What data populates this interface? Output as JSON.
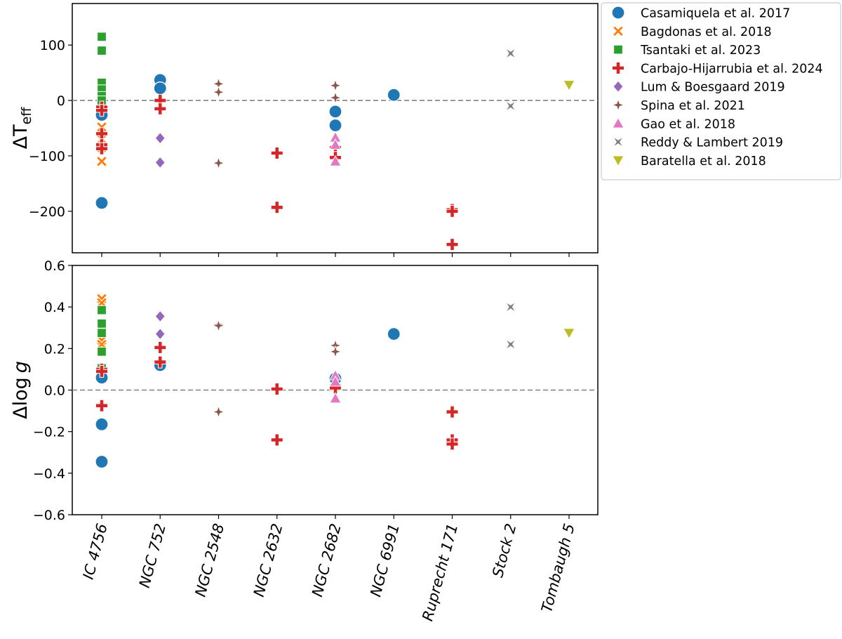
{
  "chart_data": {
    "type": "scatter",
    "categories": [
      "IC 4756",
      "NGC 752",
      "NGC 2548",
      "NGC 2632",
      "NGC 2682",
      "NGC 6991",
      "Ruprecht 171",
      "Stock 2",
      "Tombaugh 5"
    ],
    "legend": [
      {
        "name": "Casamiquela et al. 2017",
        "marker": "circle",
        "color": "#1f77b4"
      },
      {
        "name": "Bagdonas et al. 2018",
        "marker": "x",
        "color": "#ff7f0e"
      },
      {
        "name": "Tsantaki et al. 2023",
        "marker": "square",
        "color": "#2ca02c"
      },
      {
        "name": "Carbajo-Hijarrubia et al. 2024",
        "marker": "plus",
        "color": "#d62728"
      },
      {
        "name": "Lum & Boesgaard 2019",
        "marker": "diamond",
        "color": "#9467bd"
      },
      {
        "name": "Spina et al. 2021",
        "marker": "star4",
        "color": "#8c564b"
      },
      {
        "name": "Gao et al. 2018",
        "marker": "triangle-up",
        "color": "#e377c2"
      },
      {
        "name": "Reddy & Lambert 2019",
        "marker": "star4x",
        "color": "#7f7f7f"
      },
      {
        "name": "Baratella et al. 2018",
        "marker": "triangle-down",
        "color": "#bcbd22"
      }
    ],
    "panels": [
      {
        "id": "teff",
        "ylabel_main": "ΔT",
        "ylabel_sub": "eff",
        "ylim": [
          -275,
          175
        ],
        "yticks": [
          -200,
          -100,
          0,
          100
        ],
        "ytick_labels": [
          "−200",
          "−100",
          "0",
          "100"
        ],
        "zero_line": true,
        "series": [
          {
            "name": "Casamiquela et al. 2017",
            "points": [
              [
                0,
                -15
              ],
              [
                0,
                -22
              ],
              [
                0,
                -26
              ],
              [
                0,
                -185
              ],
              [
                1,
                37
              ],
              [
                1,
                22
              ],
              [
                4,
                -20
              ],
              [
                4,
                -45
              ],
              [
                5,
                10
              ]
            ]
          },
          {
            "name": "Bagdonas et al. 2018",
            "points": [
              [
                0,
                -48
              ],
              [
                0,
                -70
              ],
              [
                0,
                -85
              ],
              [
                0,
                -110
              ]
            ]
          },
          {
            "name": "Tsantaki et al. 2023",
            "points": [
              [
                0,
                115
              ],
              [
                0,
                90
              ],
              [
                0,
                32
              ],
              [
                0,
                20
              ],
              [
                0,
                8
              ],
              [
                0,
                0
              ]
            ]
          },
          {
            "name": "Carbajo-Hijarrubia et al. 2024",
            "points": [
              [
                0,
                -12
              ],
              [
                0,
                -18
              ],
              [
                0,
                -60
              ],
              [
                0,
                -80
              ],
              [
                0,
                -87
              ],
              [
                1,
                0
              ],
              [
                1,
                -15
              ],
              [
                3,
                -95
              ],
              [
                3,
                -193
              ],
              [
                4,
                -85
              ],
              [
                4,
                -103
              ],
              [
                6,
                -197
              ],
              [
                6,
                -200
              ],
              [
                6,
                -260
              ]
            ]
          },
          {
            "name": "Lum & Boesgaard 2019",
            "points": [
              [
                1,
                -68
              ],
              [
                1,
                -112
              ]
            ]
          },
          {
            "name": "Spina et al. 2021",
            "points": [
              [
                2,
                30
              ],
              [
                2,
                15
              ],
              [
                2,
                -113
              ],
              [
                4,
                27
              ],
              [
                4,
                5
              ]
            ]
          },
          {
            "name": "Gao et al. 2018",
            "points": [
              [
                4,
                -67
              ],
              [
                4,
                -80
              ],
              [
                4,
                -110
              ]
            ]
          },
          {
            "name": "Reddy & Lambert 2019",
            "points": [
              [
                7,
                85
              ],
              [
                7,
                -10
              ]
            ]
          },
          {
            "name": "Baratella et al. 2018",
            "points": [
              [
                8,
                28
              ]
            ]
          }
        ]
      },
      {
        "id": "logg",
        "ylabel_main": "Δlog",
        "ylabel_italic": "g",
        "ylim": [
          -0.6,
          0.6
        ],
        "yticks": [
          -0.6,
          -0.4,
          -0.2,
          0.0,
          0.2,
          0.4,
          0.6
        ],
        "ytick_labels": [
          "−0.6",
          "−0.4",
          "−0.2",
          "0.0",
          "0.2",
          "0.4",
          "0.6"
        ],
        "zero_line": true,
        "series": [
          {
            "name": "Casamiquela et al. 2017",
            "points": [
              [
                0,
                0.06
              ],
              [
                0,
                -0.165
              ],
              [
                0,
                -0.345
              ],
              [
                1,
                0.12
              ],
              [
                4,
                0.055
              ],
              [
                5,
                0.27
              ]
            ]
          },
          {
            "name": "Bagdonas et al. 2018",
            "points": [
              [
                0,
                0.44
              ],
              [
                0,
                0.42
              ],
              [
                0,
                0.24
              ],
              [
                0,
                0.22
              ]
            ]
          },
          {
            "name": "Tsantaki et al. 2023",
            "points": [
              [
                0,
                0.385
              ],
              [
                0,
                0.32
              ],
              [
                0,
                0.275
              ],
              [
                0,
                0.185
              ],
              [
                0,
                0.105
              ]
            ]
          },
          {
            "name": "Carbajo-Hijarrubia et al. 2024",
            "points": [
              [
                0,
                0.1
              ],
              [
                0,
                0.09
              ],
              [
                0,
                -0.075
              ],
              [
                1,
                0.205
              ],
              [
                1,
                0.135
              ],
              [
                3,
                0.005
              ],
              [
                3,
                -0.24
              ],
              [
                4,
                0.02
              ],
              [
                4,
                0.01
              ],
              [
                6,
                -0.105
              ],
              [
                6,
                -0.24
              ],
              [
                6,
                -0.26
              ]
            ]
          },
          {
            "name": "Lum & Boesgaard 2019",
            "points": [
              [
                1,
                0.355
              ],
              [
                1,
                0.27
              ]
            ]
          },
          {
            "name": "Spina et al. 2021",
            "points": [
              [
                2,
                0.315
              ],
              [
                2,
                0.31
              ],
              [
                2,
                -0.105
              ],
              [
                4,
                0.215
              ],
              [
                4,
                0.185
              ]
            ]
          },
          {
            "name": "Gao et al. 2018",
            "points": [
              [
                4,
                0.07
              ],
              [
                4,
                0.04
              ],
              [
                4,
                -0.04
              ]
            ]
          },
          {
            "name": "Reddy & Lambert 2019",
            "points": [
              [
                7,
                0.4
              ],
              [
                7,
                0.22
              ]
            ]
          },
          {
            "name": "Baratella et al. 2018",
            "points": [
              [
                8,
                0.275
              ]
            ]
          }
        ]
      }
    ]
  }
}
